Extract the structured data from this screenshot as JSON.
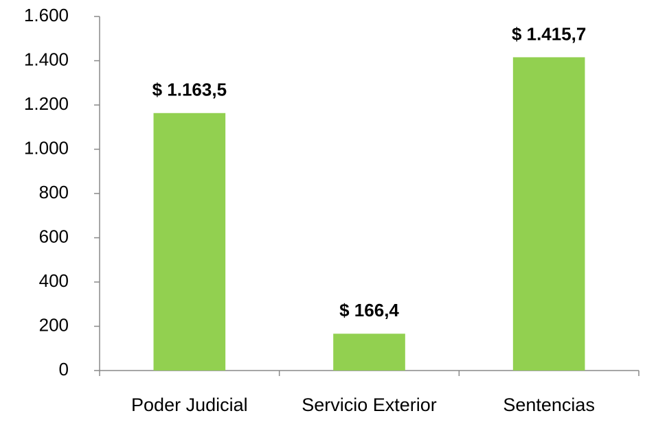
{
  "chart_data": {
    "type": "bar",
    "categories": [
      "Poder Judicial",
      "Servicio Exterior",
      "Sentencias"
    ],
    "values": [
      1163.5,
      166.4,
      1415.7
    ],
    "value_labels": [
      "$ 1.163,5",
      "$ 166,4",
      "$ 1.415,7"
    ],
    "color": "#92d050",
    "ylim": [
      0,
      1600
    ],
    "yticks": [
      0,
      200,
      400,
      600,
      800,
      {
        "value": 1000,
        "label": "1.000"
      },
      {
        "value": 1200,
        "label": "1.200"
      },
      {
        "value": 1400,
        "label": "1.400"
      },
      {
        "value": 1600,
        "label": "1.600"
      }
    ],
    "grid": false
  }
}
